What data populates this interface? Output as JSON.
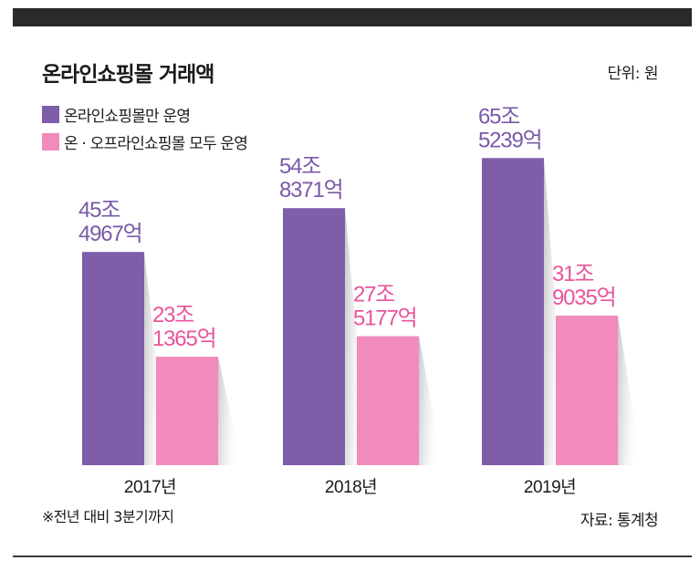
{
  "title": "온라인쇼핑몰 거래액",
  "unit": "단위: 원",
  "footnote": "※전년 대비 3분기까지",
  "source": "자료: 통계청",
  "colors": {
    "online_only": "#7e5ea9",
    "online_offline": "#f08bbb",
    "label_online_only": "#7a5aa8",
    "label_online_offline": "#e8559a"
  },
  "chart_data": {
    "type": "bar",
    "categories": [
      "2017년",
      "2018년",
      "2019년"
    ],
    "series": [
      {
        "name": "온라인쇼핑몰만 운영",
        "values": [
          454967,
          548371,
          655239
        ],
        "labels": [
          [
            "45조",
            "4967억"
          ],
          [
            "54조",
            "8371억"
          ],
          [
            "65조",
            "5239억"
          ]
        ]
      },
      {
        "name": "온 · 오프라인쇼핑몰 모두 운영",
        "values": [
          231365,
          275177,
          319035
        ],
        "labels": [
          [
            "23조",
            "1365억"
          ],
          [
            "27조",
            "5177억"
          ],
          [
            "31조",
            "9035억"
          ]
        ]
      }
    ],
    "value_unit": "억 원",
    "ylim": [
      0,
      720000
    ],
    "grid": false,
    "legend_position": "top-left"
  }
}
